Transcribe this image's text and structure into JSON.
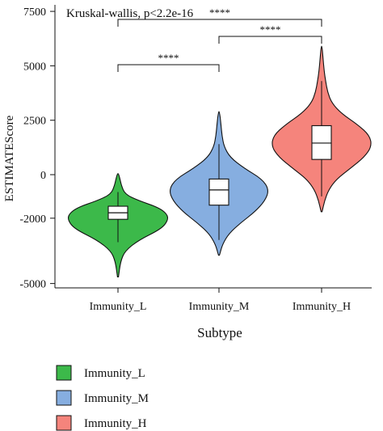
{
  "chart_data": {
    "type": "violin",
    "annotation": "Kruskal-wallis, p<2.2e-16",
    "xlabel": "Subtype",
    "ylabel": "ESTIMATEScore",
    "ylim": [
      -5200,
      7800
    ],
    "y_ticks": [
      7500,
      5000,
      2500,
      0,
      -2000,
      -5000
    ],
    "y_tick_labels": [
      "7500",
      "5000",
      "2500",
      "0",
      "-2000",
      "-5000"
    ],
    "categories": [
      "Immunity_L",
      "Immunity_M",
      "Immunity_H"
    ],
    "legend": {
      "position": "bottom-left"
    },
    "series": [
      {
        "name": "Immunity_L",
        "color": "#3cb94a",
        "min": -4700,
        "q1": -2050,
        "median": -1750,
        "q3": -1450,
        "max": 50,
        "whisker_low": -3100,
        "whisker_high": -800,
        "density": [
          [
            -4700,
            0.01
          ],
          [
            -4000,
            0.05
          ],
          [
            -3500,
            0.14
          ],
          [
            -3000,
            0.42
          ],
          [
            -2500,
            0.86
          ],
          [
            -2100,
            1.0
          ],
          [
            -1800,
            0.98
          ],
          [
            -1500,
            0.8
          ],
          [
            -1200,
            0.42
          ],
          [
            -900,
            0.14
          ],
          [
            -500,
            0.07
          ],
          [
            -200,
            0.04
          ],
          [
            50,
            0.01
          ]
        ]
      },
      {
        "name": "Immunity_M",
        "color": "#86aee0",
        "min": -3700,
        "q1": -1400,
        "median": -700,
        "q3": -200,
        "max": 2900,
        "whisker_low": -3000,
        "whisker_high": 1400,
        "density": [
          [
            -3700,
            0.01
          ],
          [
            -3200,
            0.07
          ],
          [
            -2700,
            0.2
          ],
          [
            -2200,
            0.44
          ],
          [
            -1700,
            0.72
          ],
          [
            -1200,
            0.92
          ],
          [
            -700,
            1.0
          ],
          [
            -200,
            0.86
          ],
          [
            300,
            0.5
          ],
          [
            800,
            0.22
          ],
          [
            1300,
            0.1
          ],
          [
            1800,
            0.06
          ],
          [
            2300,
            0.04
          ],
          [
            2900,
            0.01
          ]
        ]
      },
      {
        "name": "Immunity_H",
        "color": "#f5847c",
        "min": -1700,
        "q1": 700,
        "median": 1450,
        "q3": 2250,
        "max": 5900,
        "whisker_low": -1000,
        "whisker_high": 4300,
        "density": [
          [
            -1700,
            0.01
          ],
          [
            -1200,
            0.06
          ],
          [
            -700,
            0.14
          ],
          [
            -200,
            0.3
          ],
          [
            300,
            0.58
          ],
          [
            800,
            0.85
          ],
          [
            1300,
            1.0
          ],
          [
            1800,
            0.96
          ],
          [
            2300,
            0.72
          ],
          [
            2800,
            0.4
          ],
          [
            3300,
            0.2
          ],
          [
            3800,
            0.12
          ],
          [
            4300,
            0.08
          ],
          [
            4800,
            0.05
          ],
          [
            5300,
            0.03
          ],
          [
            5900,
            0.01
          ]
        ]
      }
    ],
    "comparisons": [
      {
        "from": 0,
        "to": 1,
        "label": "****"
      },
      {
        "from": 1,
        "to": 2,
        "label": "****"
      },
      {
        "from": 0,
        "to": 2,
        "label": "****"
      }
    ]
  }
}
